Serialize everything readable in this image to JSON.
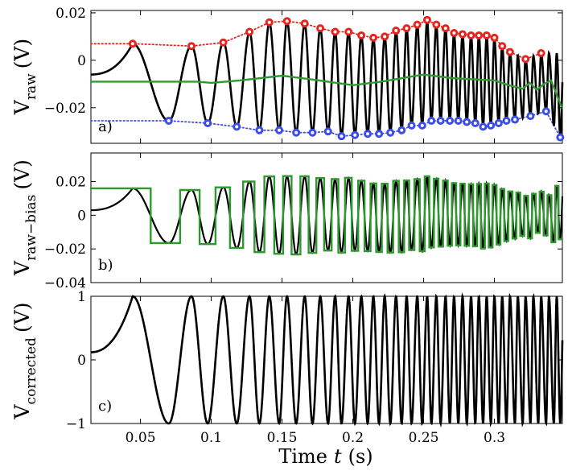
{
  "chart_data": [
    {
      "type": "line",
      "panel_label": "a)",
      "ylabel": "V",
      "ylabel_sub": "raw",
      "ylabel_unit": "(V)",
      "xlim": [
        0.015,
        0.348
      ],
      "ylim": [
        -0.035,
        0.021
      ],
      "yticks": [
        0.02,
        0,
        -0.02
      ],
      "ytick_labels": [
        "0.02",
        "0",
        "−0.02"
      ],
      "signal": {
        "name": "raw signal",
        "color": "#000000",
        "bias_v": -0.0085,
        "amp_v": 0.0235
      },
      "series": [
        {
          "name": "upper envelope (maxima)",
          "color": "#e8231e",
          "marker": "circle-o",
          "x": [
            0.0445,
            0.086,
            0.1085,
            0.127,
            0.141,
            0.1535,
            0.166,
            0.177,
            0.1875,
            0.197,
            0.206,
            0.2145,
            0.2225,
            0.2305,
            0.238,
            0.2455,
            0.2525,
            0.259,
            0.2655,
            0.2715,
            0.2775,
            0.2835,
            0.289,
            0.2945,
            0.3,
            0.3055,
            0.311,
            0.322,
            0.333
          ],
          "y": [
            0.007,
            0.006,
            0.0075,
            0.012,
            0.016,
            0.0165,
            0.0155,
            0.0135,
            0.012,
            0.012,
            0.0105,
            0.0095,
            0.01,
            0.0125,
            0.0135,
            0.015,
            0.017,
            0.015,
            0.0135,
            0.0115,
            0.011,
            0.0105,
            0.0105,
            0.0105,
            0.0095,
            0.006,
            0.0035,
            0.0005,
            0.003
          ]
        },
        {
          "name": "lower envelope (minima)",
          "color": "#3c4de6",
          "marker": "circle-o",
          "x": [
            0.07,
            0.0975,
            0.118,
            0.134,
            0.148,
            0.16,
            0.1715,
            0.1825,
            0.192,
            0.2015,
            0.2105,
            0.2185,
            0.2265,
            0.2345,
            0.2415,
            0.249,
            0.2555,
            0.262,
            0.2685,
            0.2745,
            0.2805,
            0.2865,
            0.292,
            0.2975,
            0.303,
            0.3085,
            0.3145,
            0.3255,
            0.3365,
            0.3465
          ],
          "y": [
            -0.0255,
            -0.0265,
            -0.028,
            -0.0295,
            -0.0295,
            -0.0305,
            -0.0305,
            -0.03,
            -0.032,
            -0.0315,
            -0.031,
            -0.031,
            -0.0305,
            -0.0295,
            -0.0275,
            -0.0275,
            -0.0255,
            -0.0255,
            -0.0255,
            -0.0255,
            -0.026,
            -0.0265,
            -0.028,
            -0.0275,
            -0.0265,
            -0.0255,
            -0.025,
            -0.0235,
            -0.0215,
            -0.0325
          ]
        },
        {
          "name": "bias (green)",
          "color": "#2e9a2e",
          "x": [
            0.015,
            0.07,
            0.09,
            0.1,
            0.12,
            0.15,
            0.17,
            0.2,
            0.22,
            0.25,
            0.27,
            0.3,
            0.31,
            0.32,
            0.325,
            0.33,
            0.335,
            0.34,
            0.348
          ],
          "y": [
            -0.009,
            -0.009,
            -0.009,
            -0.0095,
            -0.0085,
            -0.0065,
            -0.008,
            -0.0105,
            -0.009,
            -0.006,
            -0.0075,
            -0.0085,
            -0.0105,
            -0.012,
            -0.0095,
            -0.0125,
            -0.01,
            -0.0085,
            -0.0205
          ]
        }
      ]
    },
    {
      "type": "line",
      "panel_label": "b)",
      "ylabel": "V",
      "ylabel_sub": "raw−bias",
      "ylabel_unit": "(V)",
      "xlim": [
        0.015,
        0.348
      ],
      "ylim": [
        -0.04,
        0.037
      ],
      "yticks": [
        0.02,
        0,
        -0.02,
        -0.04
      ],
      "ytick_labels": [
        "0.02",
        "0",
        "−0.02",
        "−0.04"
      ],
      "series": [
        {
          "name": "raw minus bias",
          "color": "#000000"
        },
        {
          "name": "square-wave amplitude (green)",
          "color": "#2e9a2e",
          "initial_level": 0.0165
        }
      ]
    },
    {
      "type": "line",
      "panel_label": "c)",
      "ylabel": "V",
      "ylabel_sub": "corrected",
      "ylabel_unit": "(V)",
      "xlim": [
        0.015,
        0.348
      ],
      "ylim": [
        -1,
        1
      ],
      "yticks": [
        1,
        0,
        -1
      ],
      "ytick_labels": [
        "1",
        "0",
        "−1"
      ],
      "xticks": [
        0.05,
        0.1,
        0.15,
        0.2,
        0.25,
        0.3
      ],
      "xtick_labels": [
        "0.05",
        "0.1",
        "0.15",
        "0.2",
        "0.25",
        "0.3"
      ],
      "xlabel_text": "Time",
      "xlabel_var": "t",
      "xlabel_unit": "(s)",
      "series": [
        {
          "name": "corrected signal",
          "color": "#000000"
        }
      ]
    }
  ],
  "signal_maxima_times": [
    0.0445,
    0.086,
    0.1085,
    0.127,
    0.141,
    0.1535,
    0.166,
    0.177,
    0.1875,
    0.197,
    0.206,
    0.2145,
    0.2225,
    0.2305,
    0.238,
    0.2455,
    0.2525,
    0.259,
    0.2655,
    0.2715,
    0.2775,
    0.2835,
    0.289,
    0.2945,
    0.3,
    0.3055,
    0.311,
    0.3165,
    0.322,
    0.3275,
    0.333,
    0.3385,
    0.344
  ],
  "signal_minima_times": [
    0.07,
    0.0975,
    0.118,
    0.134,
    0.148,
    0.16,
    0.1715,
    0.1825,
    0.192,
    0.2015,
    0.2105,
    0.2185,
    0.2265,
    0.2345,
    0.2415,
    0.249,
    0.2555,
    0.262,
    0.2685,
    0.2745,
    0.2805,
    0.2865,
    0.292,
    0.2975,
    0.303,
    0.3085,
    0.3145,
    0.32,
    0.3255,
    0.331,
    0.3365,
    0.342,
    0.3465
  ]
}
